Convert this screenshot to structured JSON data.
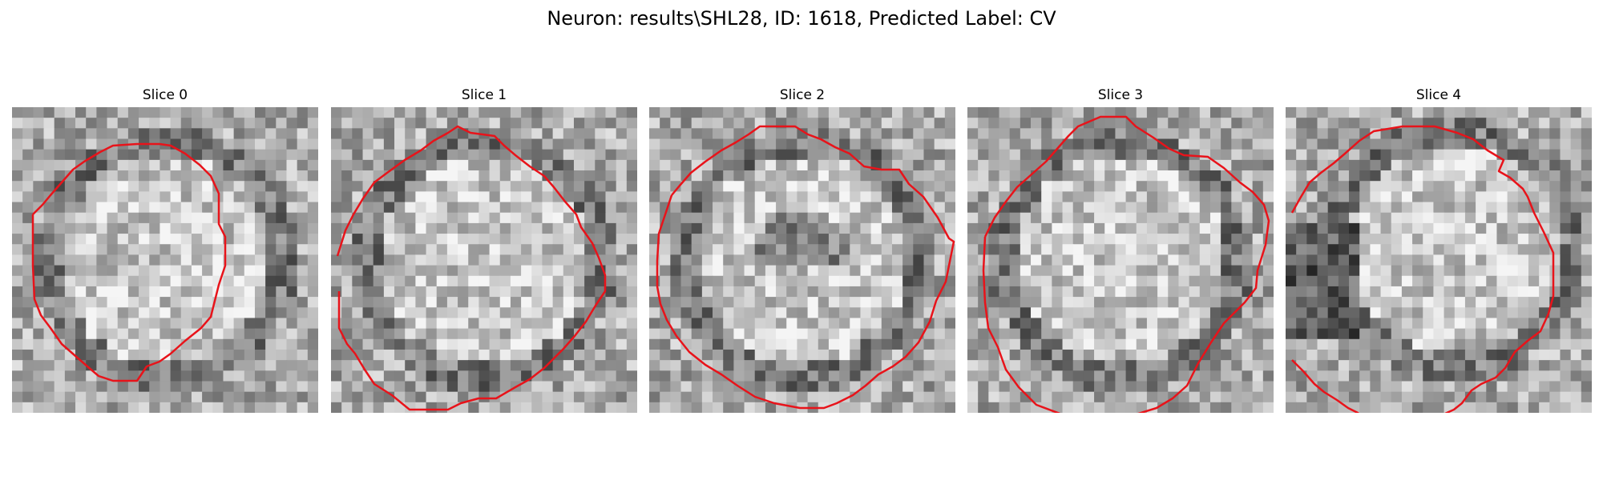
{
  "figure": {
    "title": "Neuron: results\\SHL28, ID: 1618, Predicted Label: CV",
    "contour_color": "#e8131a"
  },
  "panels": [
    {
      "title": "Slice 0"
    },
    {
      "title": "Slice 1"
    },
    {
      "title": "Slice 2"
    },
    {
      "title": "Slice 3"
    },
    {
      "title": "Slice 4"
    }
  ]
}
